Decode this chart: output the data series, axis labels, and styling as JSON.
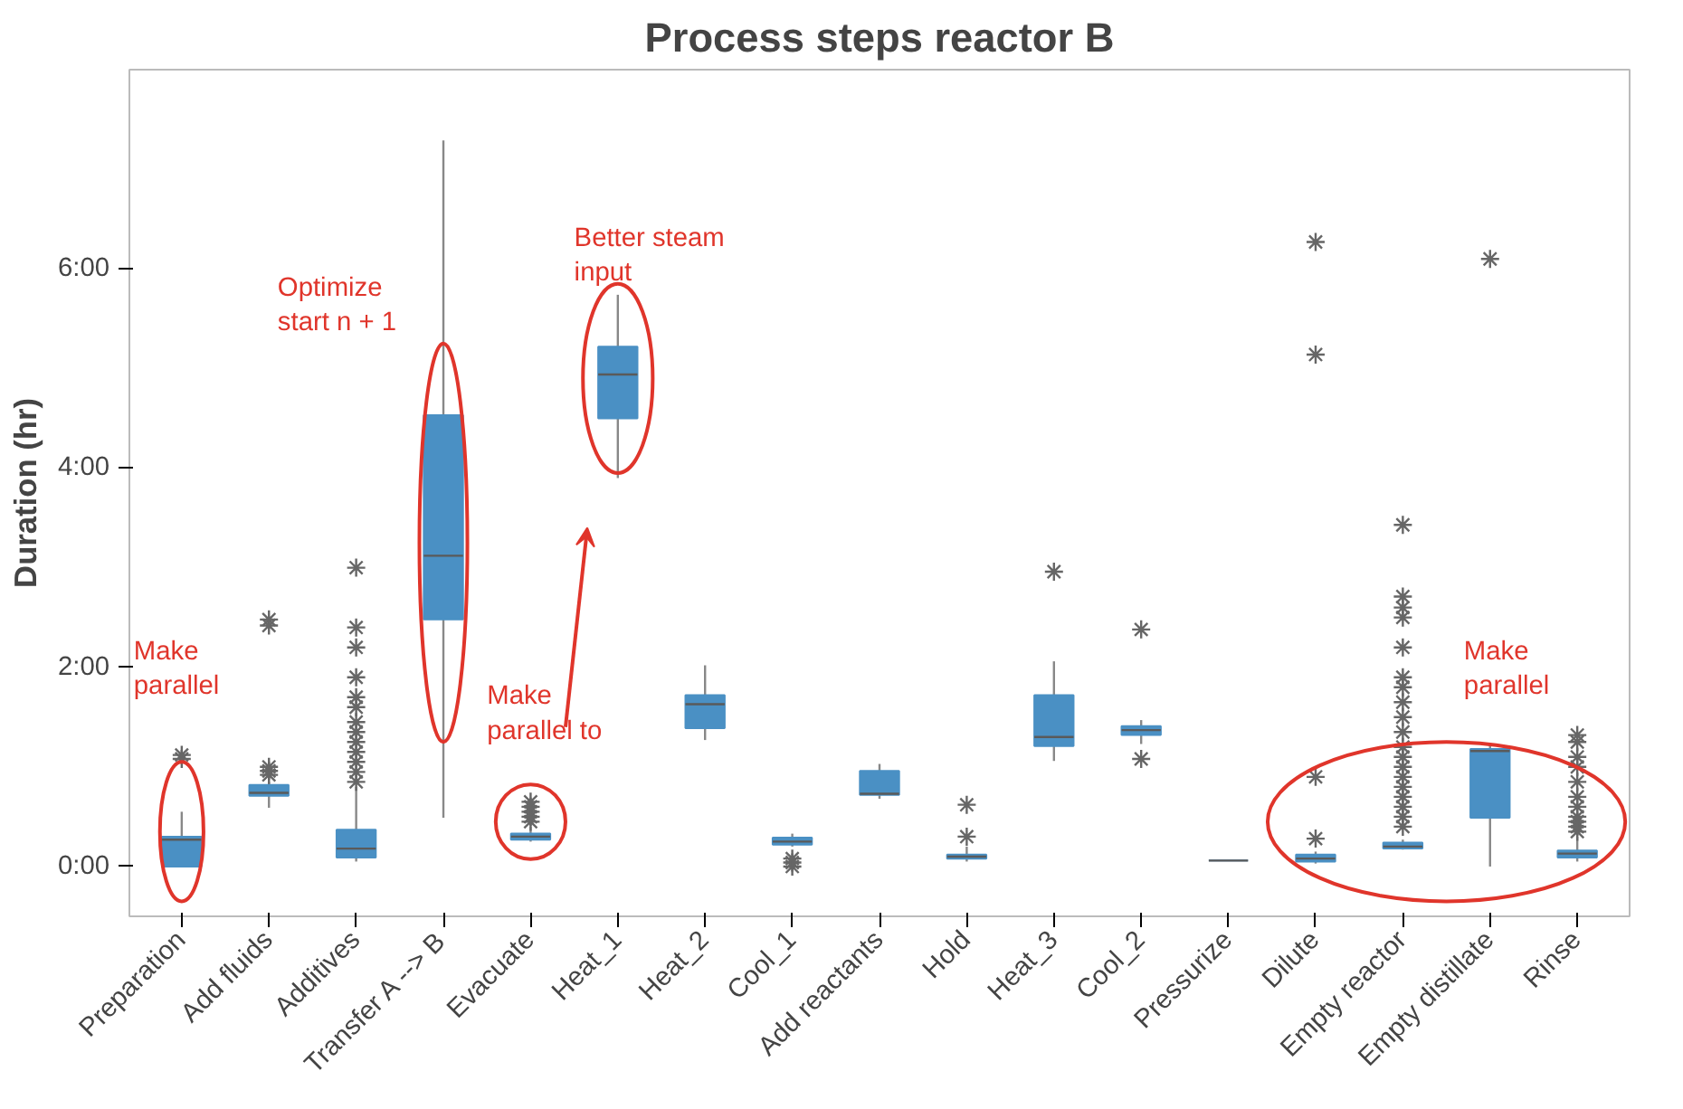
{
  "chart_data": {
    "type": "box",
    "title": "Process steps reactor B",
    "ylabel": "Duration (hr)",
    "categories": [
      "Preparation",
      "Add fluids",
      "Additives",
      "Transfer A --> B",
      "Evacuate",
      "Heat_1",
      "Heat_2",
      "Cool_1",
      "Add reactants",
      "Hold",
      "Heat_3",
      "Cool_2",
      "Pressurize",
      "Dilute",
      "Empty reactor",
      "Empty distillate",
      "Rinse"
    ],
    "color": "#4a90c4",
    "boxes": [
      {
        "low": 0,
        "q1": 0,
        "median": 0.27,
        "q3": 0.3,
        "high": 0.55,
        "outliers": [
          1.08,
          1.12
        ]
      },
      {
        "low": 0.59,
        "q1": 0.71,
        "median": 0.74,
        "q3": 0.82,
        "high": 0.85,
        "outliers": [
          0.92,
          0.96,
          1.0,
          2.42,
          2.48
        ]
      },
      {
        "low": 0.05,
        "q1": 0.09,
        "median": 0.18,
        "q3": 0.37,
        "high": 0.8,
        "outliers": [
          0.85,
          0.95,
          1.05,
          1.15,
          1.25,
          1.35,
          1.45,
          1.6,
          1.7,
          1.9,
          2.2,
          2.4,
          3.0
        ]
      },
      {
        "low": 0.49,
        "q1": 2.48,
        "median": 3.12,
        "q3": 4.53,
        "high": 7.29
      },
      {
        "low": 0.25,
        "q1": 0.27,
        "median": 0.3,
        "q3": 0.33,
        "high": 0.4,
        "outliers": [
          0.45,
          0.5,
          0.55,
          0.6,
          0.65
        ]
      },
      {
        "low": 3.9,
        "q1": 4.5,
        "median": 4.94,
        "q3": 5.22,
        "high": 5.74
      },
      {
        "low": 1.27,
        "q1": 1.39,
        "median": 1.63,
        "q3": 1.72,
        "high": 2.02
      },
      {
        "low": 0.2,
        "q1": 0.22,
        "median": 0.25,
        "q3": 0.29,
        "high": 0.33,
        "outliers": [
          0.0,
          0.04,
          0.08
        ]
      },
      {
        "low": 0.68,
        "q1": 0.72,
        "median": 0.73,
        "q3": 0.96,
        "high": 1.03
      },
      {
        "low": 0.05,
        "q1": 0.08,
        "median": 0.1,
        "q3": 0.12,
        "high": 0.2,
        "outliers": [
          0.3,
          0.62
        ]
      },
      {
        "low": 1.06,
        "q1": 1.21,
        "median": 1.3,
        "q3": 1.72,
        "high": 2.06,
        "outliers": [
          2.96
        ]
      },
      {
        "low": 1.23,
        "q1": 1.32,
        "median": 1.37,
        "q3": 1.41,
        "high": 1.47,
        "outliers": [
          1.08,
          2.38
        ]
      },
      {
        "low": 0.06,
        "q1": 0.06,
        "median": 0.06,
        "q3": 0.06,
        "high": 0.06
      },
      {
        "low": 0.03,
        "q1": 0.05,
        "median": 0.08,
        "q3": 0.12,
        "high": 0.15,
        "outliers": [
          0.28,
          0.9,
          5.14,
          6.27
        ]
      },
      {
        "low": 0.17,
        "q1": 0.18,
        "median": 0.2,
        "q3": 0.24,
        "high": 0.27,
        "outliers": [
          0.4,
          0.5,
          0.6,
          0.7,
          0.8,
          0.9,
          1.0,
          1.1,
          1.2,
          1.35,
          1.5,
          1.65,
          1.8,
          1.9,
          2.2,
          2.5,
          2.6,
          2.71,
          3.43
        ]
      },
      {
        "low": 0.0,
        "q1": 0.49,
        "median": 1.16,
        "q3": 1.18,
        "high": 1.22,
        "outliers": [
          6.1
        ]
      },
      {
        "low": 0.05,
        "q1": 0.09,
        "median": 0.13,
        "q3": 0.16,
        "high": 0.3,
        "outliers": [
          0.35,
          0.4,
          0.45,
          0.5,
          0.6,
          0.7,
          0.85,
          1.0,
          1.1,
          1.25,
          1.32
        ]
      }
    ],
    "ylim": [
      -0.5,
      8.0
    ],
    "yticks": [
      {
        "value": 0,
        "label": "0:00"
      },
      {
        "value": 2,
        "label": "2:00"
      },
      {
        "value": 4,
        "label": "4:00"
      },
      {
        "value": 6,
        "label": "6:00"
      }
    ],
    "grid": false,
    "marker": "star",
    "annotations": [
      "Make\nparallel",
      "Optimize\nstart n + 1",
      "Better steam\ninput",
      "Make\nparallel to",
      "Make\nparallel"
    ]
  }
}
